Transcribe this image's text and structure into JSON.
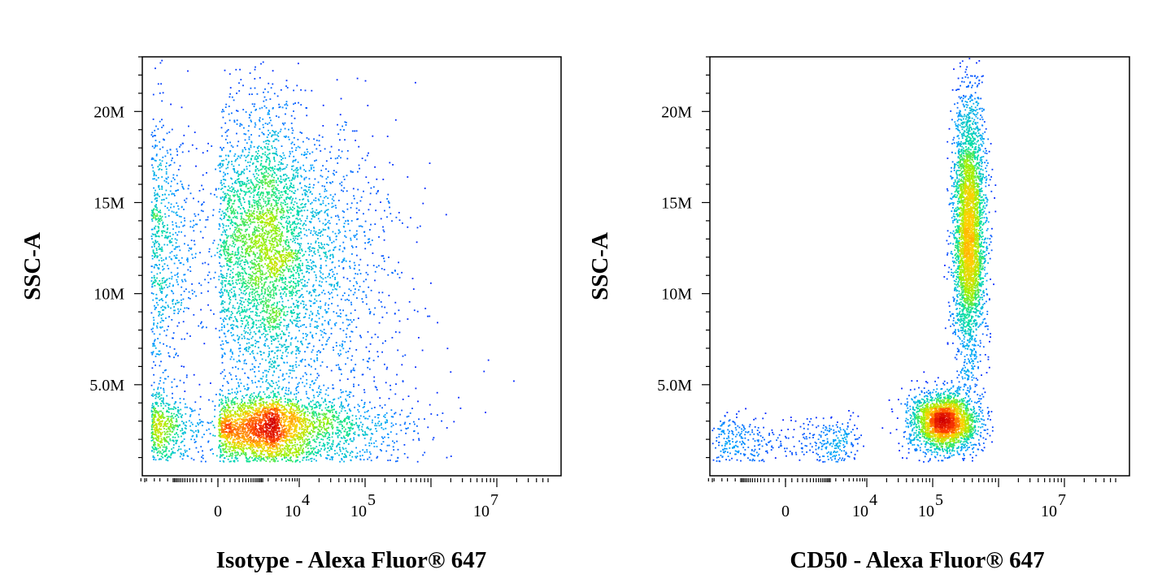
{
  "chart_data": [
    {
      "type": "scatter",
      "subtype": "density-dot-plot",
      "xlabel": "Isotype - Alexa Fluor® 647",
      "ylabel": "SSC-A",
      "x_scale": "biexponential",
      "y_scale": "linear",
      "ylim": [
        0,
        23000000
      ],
      "y_ticks": [
        {
          "value": 5000000,
          "label": "5.0M"
        },
        {
          "value": 10000000,
          "label": "10M"
        },
        {
          "value": 15000000,
          "label": "15M"
        },
        {
          "value": 20000000,
          "label": "20M"
        }
      ],
      "x_ticks": [
        {
          "value": "0",
          "label": "0"
        },
        {
          "value": "1e4",
          "base": "10",
          "exp": "4"
        },
        {
          "value": "1e5",
          "base": "10",
          "exp": "5"
        },
        {
          "value": "1e7",
          "base": "10",
          "exp": "7"
        }
      ],
      "populations": [
        {
          "x_center": 2200,
          "y_center": 13000000,
          "x_spread_decades": 0.8,
          "y_spread": 3500000,
          "relative_count": 0.47
        },
        {
          "x_center": 2500,
          "y_center": 2700000,
          "x_spread_decades": 0.9,
          "y_spread": 900000,
          "relative_count": 0.38
        },
        {
          "x_center": 10000,
          "y_center": 7000000,
          "x_spread_decades": 0.9,
          "y_spread": 4500000,
          "relative_count": 0.15
        }
      ],
      "color_scale": [
        "#0000ff",
        "#00a0ff",
        "#00e0a0",
        "#a0f000",
        "#ffd000",
        "#ff4000",
        "#d00000"
      ],
      "grid": false,
      "legend": "none"
    },
    {
      "type": "scatter",
      "subtype": "density-dot-plot",
      "xlabel": "CD50 - Alexa Fluor® 647",
      "ylabel": "SSC-A",
      "x_scale": "biexponential",
      "y_scale": "linear",
      "ylim": [
        0,
        23000000
      ],
      "y_ticks": [
        {
          "value": 5000000,
          "label": "5.0M"
        },
        {
          "value": 10000000,
          "label": "10M"
        },
        {
          "value": 15000000,
          "label": "15M"
        },
        {
          "value": 20000000,
          "label": "20M"
        }
      ],
      "x_ticks": [
        {
          "value": "0",
          "label": "0"
        },
        {
          "value": "1e4",
          "base": "10",
          "exp": "4"
        },
        {
          "value": "1e5",
          "base": "10",
          "exp": "5"
        },
        {
          "value": "1e7",
          "base": "10",
          "exp": "7"
        }
      ],
      "populations": [
        {
          "x_center": 350000,
          "y_center": 13500000,
          "x_spread_decades": 0.12,
          "y_spread": 3500000,
          "relative_count": 0.55
        },
        {
          "x_center": 150000,
          "y_center": 3000000,
          "x_spread_decades": 0.25,
          "y_spread": 800000,
          "relative_count": 0.38
        },
        {
          "x_center": 0,
          "y_center": 2000000,
          "x_spread_decades": 0.8,
          "y_spread": 700000,
          "relative_count": 0.07
        }
      ],
      "color_scale": [
        "#0000ff",
        "#00a0ff",
        "#00e0a0",
        "#a0f000",
        "#ffd000",
        "#ff4000",
        "#d00000"
      ],
      "grid": false,
      "legend": "none"
    }
  ]
}
